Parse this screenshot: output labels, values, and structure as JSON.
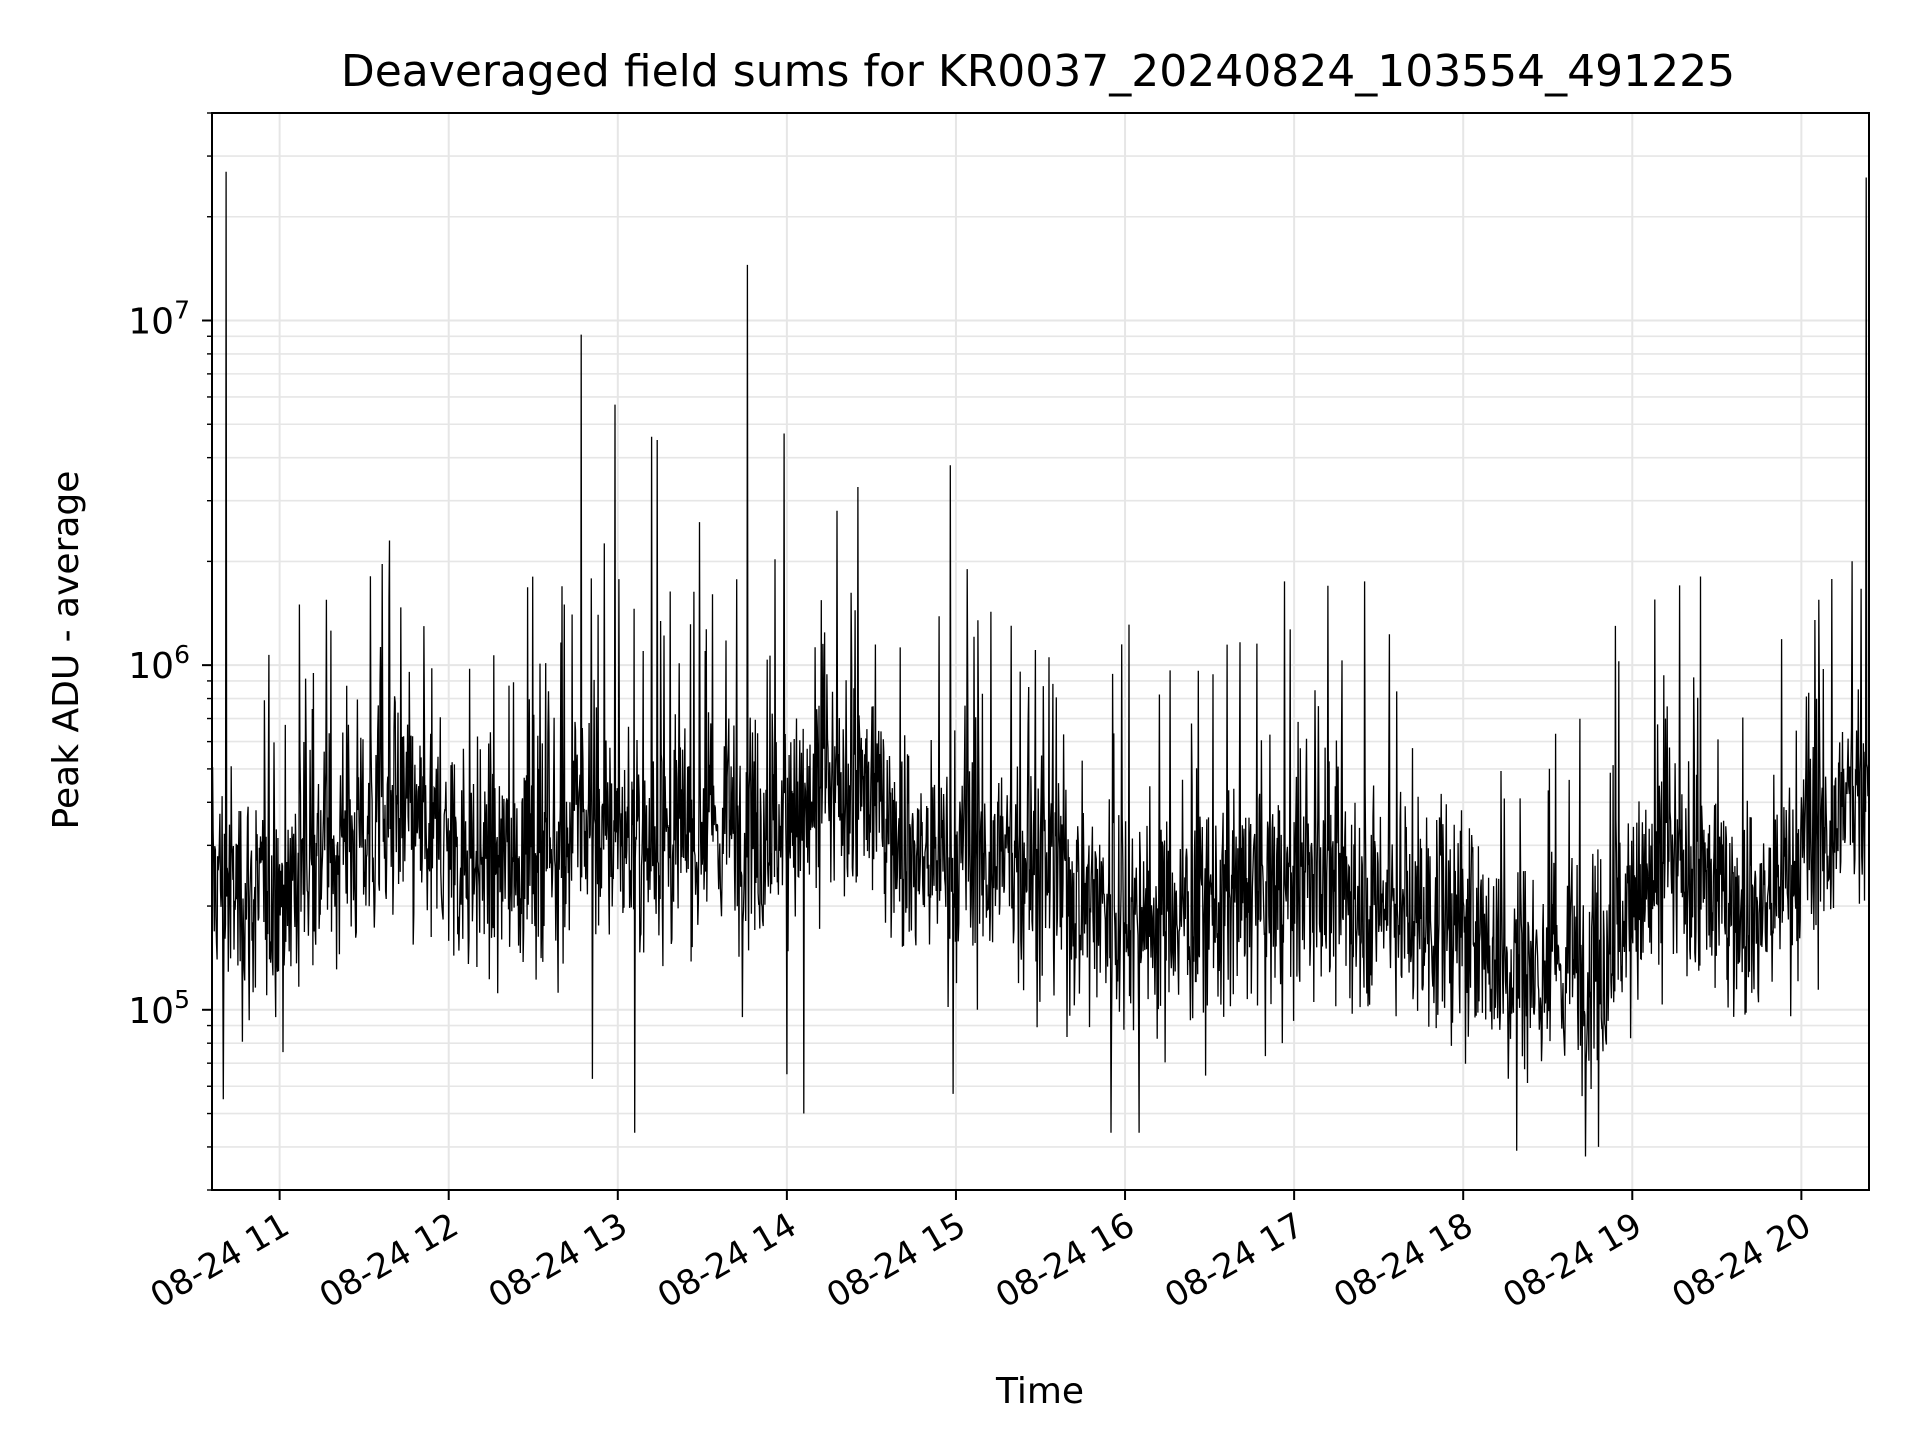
{
  "chart_data": {
    "type": "line",
    "title": "Deaveraged field sums for KR0037_20240824_103554_491225",
    "xlabel": "Time",
    "ylabel": "Peak ADU - average",
    "yscale": "log",
    "xlim": [
      "2024-08-24 10:36",
      "2024-08-24 20:24"
    ],
    "ylim": [
      30000,
      40000000
    ],
    "x_tick_labels": [
      "08-24 11",
      "08-24 12",
      "08-24 13",
      "08-24 14",
      "08-24 15",
      "08-24 16",
      "08-24 17",
      "08-24 18",
      "08-24 19",
      "08-24 20"
    ],
    "x_tick_values": [
      "2024-08-24 11:00",
      "2024-08-24 12:00",
      "2024-08-24 13:00",
      "2024-08-24 14:00",
      "2024-08-24 15:00",
      "2024-08-24 16:00",
      "2024-08-24 17:00",
      "2024-08-24 18:00",
      "2024-08-24 19:00",
      "2024-08-24 20:00"
    ],
    "y_tick_labels": [
      {
        "base": "10",
        "exp": "5"
      },
      {
        "base": "10",
        "exp": "6"
      },
      {
        "base": "10",
        "exp": "7"
      }
    ],
    "y_tick_values": [
      100000,
      1000000,
      10000000
    ],
    "grid": true,
    "line_color": "#000000",
    "grid_color": "#e6e6e6",
    "series": [
      {
        "x": [
          "2024-08-24 10:36",
          "2024-08-24 10:38",
          "2024-08-24 10:42",
          "2024-08-24 10:45",
          "2024-08-24 10:52",
          "2024-08-24 11:00",
          "2024-08-24 11:15",
          "2024-08-24 11:30",
          "2024-08-24 11:45",
          "2024-08-24 12:00",
          "2024-08-24 12:15",
          "2024-08-24 12:30",
          "2024-08-24 12:45",
          "2024-08-24 13:00",
          "2024-08-24 13:15",
          "2024-08-24 13:30",
          "2024-08-24 13:45",
          "2024-08-24 14:00",
          "2024-08-24 14:15",
          "2024-08-24 14:30",
          "2024-08-24 14:45",
          "2024-08-24 15:00",
          "2024-08-24 15:15",
          "2024-08-24 15:30",
          "2024-08-24 15:45",
          "2024-08-24 16:00",
          "2024-08-24 16:15",
          "2024-08-24 16:30",
          "2024-08-24 16:45",
          "2024-08-24 17:00",
          "2024-08-24 17:15",
          "2024-08-24 17:30",
          "2024-08-24 17:45",
          "2024-08-24 18:00",
          "2024-08-24 18:15",
          "2024-08-24 18:30",
          "2024-08-24 18:45",
          "2024-08-24 19:00",
          "2024-08-24 19:15",
          "2024-08-24 19:30",
          "2024-08-24 19:45",
          "2024-08-24 20:00",
          "2024-08-24 20:15",
          "2024-08-24 20:24"
        ],
        "baseline": [
          250000,
          240000,
          220000,
          220000,
          210000,
          220000,
          300000,
          330000,
          350000,
          300000,
          260000,
          280000,
          330000,
          320000,
          300000,
          330000,
          330000,
          350000,
          400000,
          430000,
          280000,
          250000,
          280000,
          250000,
          220000,
          190000,
          190000,
          200000,
          210000,
          230000,
          230000,
          210000,
          190000,
          170000,
          140000,
          130000,
          130000,
          200000,
          250000,
          220000,
          190000,
          260000,
          380000,
          500000
        ],
        "spikes": [
          {
            "x": "2024-08-24 10:41",
            "y": 27000000
          },
          {
            "x": "2024-08-24 11:07",
            "y": 1500000
          },
          {
            "x": "2024-08-24 11:39",
            "y": 2300000
          },
          {
            "x": "2024-08-24 12:41",
            "y": 1500000
          },
          {
            "x": "2024-08-24 12:47",
            "y": 9100000
          },
          {
            "x": "2024-08-24 12:53",
            "y": 1400000
          },
          {
            "x": "2024-08-24 12:59",
            "y": 5700000
          },
          {
            "x": "2024-08-24 13:12",
            "y": 4600000
          },
          {
            "x": "2024-08-24 13:14",
            "y": 4500000
          },
          {
            "x": "2024-08-24 13:29",
            "y": 2600000
          },
          {
            "x": "2024-08-24 13:46",
            "y": 14500000
          },
          {
            "x": "2024-08-24 13:59",
            "y": 4700000
          },
          {
            "x": "2024-08-24 14:58",
            "y": 3800000
          },
          {
            "x": "2024-08-24 15:04",
            "y": 1900000
          },
          {
            "x": "2024-08-24 17:12",
            "y": 1700000
          },
          {
            "x": "2024-08-24 17:25",
            "y": 1750000
          },
          {
            "x": "2024-08-24 18:54",
            "y": 1300000
          },
          {
            "x": "2024-08-24 19:08",
            "y": 1550000
          },
          {
            "x": "2024-08-24 20:23",
            "y": 26000000
          }
        ],
        "dips": [
          {
            "x": "2024-08-24 10:40",
            "y": 55000
          },
          {
            "x": "2024-08-24 12:51",
            "y": 63000
          },
          {
            "x": "2024-08-24 13:06",
            "y": 44000
          },
          {
            "x": "2024-08-24 14:00",
            "y": 65000
          },
          {
            "x": "2024-08-24 14:06",
            "y": 50000
          },
          {
            "x": "2024-08-24 14:59",
            "y": 57000
          },
          {
            "x": "2024-08-24 15:55",
            "y": 44000
          },
          {
            "x": "2024-08-24 16:05",
            "y": 44000
          },
          {
            "x": "2024-08-24 18:19",
            "y": 39000
          },
          {
            "x": "2024-08-24 18:48",
            "y": 40000
          }
        ]
      }
    ]
  }
}
